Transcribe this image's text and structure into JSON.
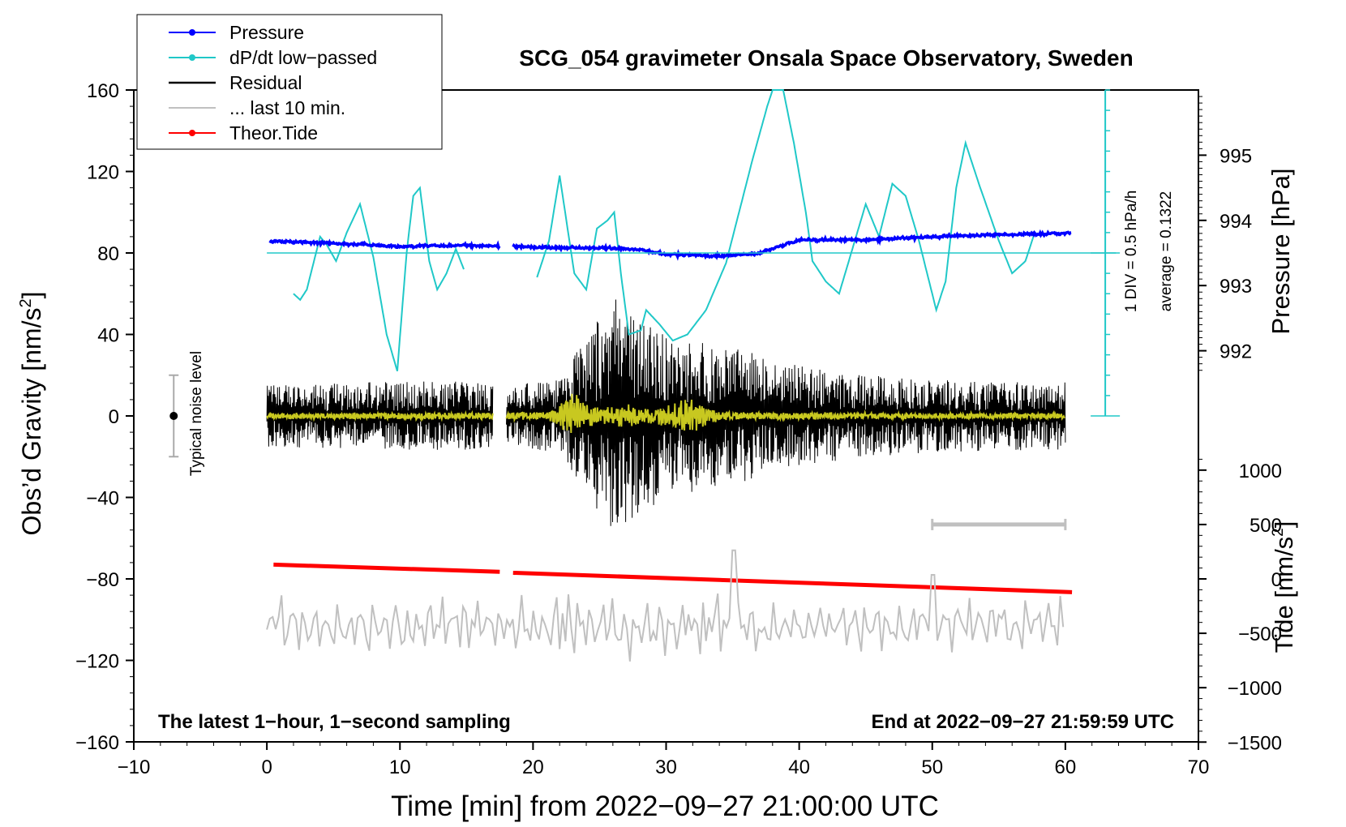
{
  "chart_data": {
    "type": "line",
    "title": "SCG_054 gravimeter Onsala Space Observatory, Sweden",
    "xlabel": "Time [min] from 2022−09−27 21:00:00 UTC",
    "ylabel_main": "Obs’d Gravity [nm/s²]",
    "ylabel_pressure": "Pressure [hPa]",
    "ylabel_tide": "Tide [nm/s²]",
    "xlim": [
      -10,
      70
    ],
    "ylim": [
      -160,
      160
    ],
    "x_ticks": [
      -10,
      0,
      10,
      20,
      30,
      40,
      50,
      60,
      70
    ],
    "x_tick_labels": [
      "−10",
      "0",
      "10",
      "20",
      "30",
      "40",
      "50",
      "60",
      "70"
    ],
    "y_ticks": [
      160,
      120,
      80,
      40,
      0,
      -40,
      -80,
      -120,
      -160
    ],
    "y_tick_labels": [
      "160",
      "120",
      "80",
      "40",
      "0",
      "−40",
      "−80",
      "−120",
      "−160"
    ],
    "pressure_axis": {
      "ticks": [
        992,
        993,
        994,
        995
      ],
      "tick_labels": [
        "992",
        "993",
        "994",
        "995"
      ],
      "ref_value": 992,
      "ref_gravity": 32,
      "gravity_per_hpa": 32
    },
    "tide_axis": {
      "ticks": [
        1000,
        500,
        0,
        -500,
        -1000,
        -1500
      ],
      "tick_labels": [
        "1000",
        "500",
        "0",
        "−500",
        "−1000",
        "−1500"
      ],
      "gravity_per_unit": 0.0534,
      "offset": -80
    },
    "legend": {
      "position": "top-left",
      "entries": [
        {
          "label": "Pressure",
          "color": "#0000ff",
          "marker": true
        },
        {
          "label": "dP/dt low−passed",
          "color": "#20c8c8",
          "marker": true
        },
        {
          "label": "Residual",
          "color": "#000000",
          "marker": false
        },
        {
          "label": "... last 10 min.",
          "color": "#c0c0c0",
          "marker": false
        },
        {
          "label": "Theor.Tide",
          "color": "#ff0000",
          "marker": true
        }
      ]
    },
    "annotations": {
      "left_bottom": "The latest 1−hour, 1−second sampling",
      "right_bottom": "End at 2022−09−27 21:59:59 UTC",
      "noise_label": "Typical noise level",
      "div_label": "1 DIV = 0.5 hPa/h",
      "average_label": "average = 0.1322"
    },
    "noise_bar": {
      "x": -7,
      "center": 0,
      "low": -20,
      "high": 20
    },
    "dpdt_scale": {
      "x": 63,
      "ticks": [
        0,
        10,
        20,
        30,
        40,
        50,
        60,
        70,
        80,
        90,
        100,
        110,
        120,
        130,
        140,
        150,
        160
      ],
      "baseline": 80
    },
    "range_bar": {
      "x_start": 50,
      "x_end": 60,
      "tide_value": 500
    },
    "series": [
      {
        "name": "Pressure",
        "color": "#0000ff",
        "segments": [
          [
            0.2,
            17.5
          ],
          [
            18.5,
            60.5
          ]
        ],
        "x": [
          0.2,
          5,
          10,
          15,
          17.5,
          18.5,
          22,
          25,
          28,
          30,
          34,
          37,
          40,
          45,
          50,
          55,
          60.5
        ],
        "y": [
          993.68,
          993.65,
          993.6,
          993.62,
          993.6,
          993.6,
          993.58,
          993.58,
          993.55,
          993.48,
          993.45,
          993.5,
          993.7,
          993.7,
          993.75,
          993.78,
          993.8
        ]
      },
      {
        "name": "dP/dt low-passed",
        "color": "#20c8c8",
        "segments": [
          [
            2,
            14.8
          ],
          [
            20.3,
            57.8
          ]
        ],
        "baseline_value": 80,
        "x": [
          2,
          2.5,
          3,
          4,
          4.5,
          5.2,
          6,
          7,
          8,
          9,
          9.8,
          10.5,
          11,
          11.5,
          12.2,
          12.8,
          13.5,
          14.2,
          14.8,
          20.3,
          21.2,
          22,
          23.1,
          24,
          24.8,
          25.6,
          26.1,
          26.6,
          27.2,
          28.1,
          28.5,
          29.5,
          30.5,
          31.6,
          33,
          34.5,
          36.5,
          37.6,
          38,
          38.8,
          39.6,
          40.5,
          41,
          42,
          43,
          44,
          45,
          46,
          47,
          48,
          49,
          50.3,
          51,
          51.8,
          52.5,
          53.5,
          55,
          56,
          57,
          57.8
        ],
        "y": [
          60,
          57,
          62,
          88,
          84,
          76,
          90,
          104,
          78,
          40,
          22,
          80,
          108,
          112,
          76,
          62,
          70,
          82,
          72,
          68,
          86,
          118,
          70,
          62,
          92,
          96,
          100,
          70,
          40,
          42,
          52,
          45,
          37,
          40,
          52,
          75,
          126,
          152,
          160,
          160,
          134,
          100,
          76,
          66,
          60,
          82,
          104,
          88,
          114,
          108,
          86,
          52,
          66,
          112,
          134,
          114,
          86,
          70,
          76,
          92
        ]
      },
      {
        "name": "Residual",
        "color": "#000000",
        "segments": [
          [
            0,
            17
          ],
          [
            18,
            60
          ]
        ],
        "envelope_x": [
          0,
          5,
          10,
          15,
          17,
          18,
          22,
          24.5,
          26.5,
          28,
          30,
          33,
          36,
          40,
          45,
          50,
          55,
          60
        ],
        "envelope_amp": [
          15,
          16,
          17,
          17,
          15,
          15,
          18,
          44,
          62,
          48,
          40,
          37,
          32,
          25,
          20,
          18,
          17,
          17
        ]
      },
      {
        "name": "Filtered residual",
        "color": "#c8c820",
        "segments": [
          [
            0,
            17
          ],
          [
            18,
            60
          ]
        ],
        "envelope_x": [
          0,
          21,
          22,
          23,
          24,
          25,
          27,
          29,
          30.5,
          31.5,
          33,
          35,
          60
        ],
        "envelope_amp": [
          1.5,
          2,
          6,
          13,
          7,
          4,
          6,
          4,
          6,
          10,
          5,
          2,
          1.5
        ]
      },
      {
        "name": "... last 10 min.",
        "color": "#c0c0c0",
        "segments": [
          [
            0,
            60
          ]
        ],
        "center": -103,
        "amplitude": 12
      },
      {
        "name": "Theor.Tide",
        "color": "#ff0000",
        "segments": [
          [
            0.5,
            17.5
          ],
          [
            18.5,
            60.5
          ]
        ],
        "x": [
          0.5,
          17.5,
          18.5,
          60.5
        ],
        "y": [
          -73,
          -76.5,
          -77,
          -86.5
        ]
      }
    ]
  }
}
